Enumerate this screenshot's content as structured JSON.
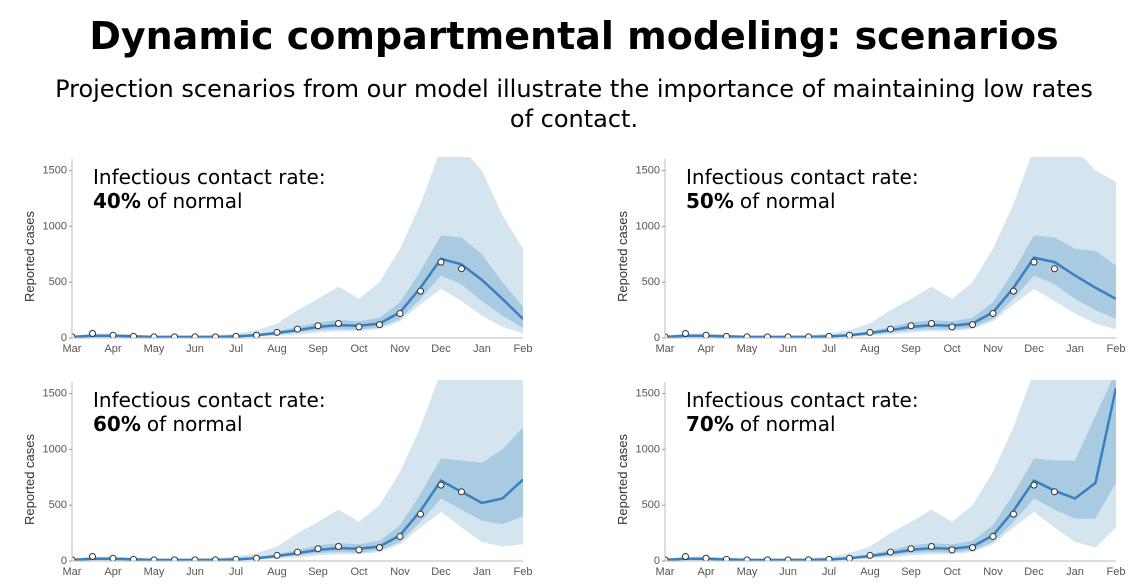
{
  "title": "Dynamic compartmental modeling: scenarios",
  "subtitle": "Projection scenarios from our model illustrate the importance of maintaining low rates of contact.",
  "chart_data": [
    {
      "type": "line",
      "rate_label": "Infectious contact rate:",
      "rate": "40%",
      "rate_suffix": "of normal",
      "y_label": "Reported cases",
      "categories": [
        "Mar",
        null,
        "Apr",
        null,
        "May",
        null,
        "Jun",
        null,
        "Jul",
        null,
        "Aug",
        null,
        "Sep",
        null,
        "Oct",
        null,
        "Nov",
        null,
        "Dec",
        null,
        "Jan",
        null,
        "Feb"
      ],
      "ylim": [
        0,
        1550
      ],
      "yticks": [
        0,
        500,
        1000,
        1500
      ],
      "series": [
        {
          "kind": "band",
          "color": "#d4e5ef",
          "lower": [
            0,
            5,
            5,
            5,
            0,
            0,
            0,
            0,
            5,
            10,
            20,
            30,
            50,
            60,
            60,
            80,
            150,
            300,
            440,
            330,
            200,
            100,
            40
          ],
          "upper": [
            20,
            40,
            40,
            30,
            20,
            20,
            20,
            25,
            40,
            70,
            130,
            250,
            350,
            460,
            350,
            500,
            800,
            1200,
            1700,
            1700,
            1500,
            1100,
            800
          ]
        },
        {
          "kind": "band",
          "color": "#a9cbe1",
          "lower": [
            5,
            15,
            15,
            10,
            5,
            5,
            5,
            5,
            10,
            18,
            32,
            50,
            70,
            80,
            75,
            95,
            170,
            350,
            560,
            480,
            330,
            200,
            90
          ],
          "upper": [
            15,
            25,
            25,
            20,
            15,
            15,
            15,
            15,
            20,
            35,
            60,
            100,
            140,
            160,
            150,
            180,
            320,
            600,
            920,
            900,
            750,
            500,
            280
          ]
        },
        {
          "kind": "line",
          "color": "#3a7fc0",
          "values": [
            10,
            20,
            20,
            15,
            10,
            10,
            10,
            10,
            15,
            25,
            45,
            70,
            100,
            115,
            110,
            130,
            230,
            450,
            710,
            660,
            520,
            350,
            170
          ]
        },
        {
          "kind": "points",
          "color": "#333333",
          "values": [
            10,
            40,
            25,
            15,
            10,
            10,
            10,
            10,
            15,
            25,
            50,
            80,
            110,
            130,
            100,
            120,
            220,
            420,
            680,
            620,
            null,
            null,
            null
          ]
        }
      ]
    },
    {
      "type": "line",
      "rate_label": "Infectious contact rate:",
      "rate": "50%",
      "rate_suffix": "of normal",
      "y_label": "Reported cases",
      "categories": [
        "Mar",
        null,
        "Apr",
        null,
        "May",
        null,
        "Jun",
        null,
        "Jul",
        null,
        "Aug",
        null,
        "Sep",
        null,
        "Oct",
        null,
        "Nov",
        null,
        "Dec",
        null,
        "Jan",
        null,
        "Feb"
      ],
      "ylim": [
        0,
        1550
      ],
      "yticks": [
        0,
        500,
        1000,
        1500
      ],
      "series": [
        {
          "kind": "band",
          "color": "#d4e5ef",
          "lower": [
            0,
            5,
            5,
            5,
            0,
            0,
            0,
            0,
            5,
            10,
            20,
            30,
            50,
            60,
            60,
            80,
            150,
            300,
            440,
            330,
            220,
            130,
            80
          ],
          "upper": [
            20,
            40,
            40,
            30,
            20,
            20,
            20,
            25,
            40,
            70,
            130,
            250,
            350,
            460,
            350,
            500,
            800,
            1200,
            1700,
            1700,
            1700,
            1500,
            1400
          ]
        },
        {
          "kind": "band",
          "color": "#a9cbe1",
          "lower": [
            5,
            15,
            15,
            10,
            5,
            5,
            5,
            5,
            10,
            18,
            32,
            50,
            70,
            80,
            75,
            95,
            170,
            350,
            560,
            480,
            350,
            250,
            170
          ],
          "upper": [
            15,
            25,
            25,
            20,
            15,
            15,
            15,
            15,
            20,
            35,
            60,
            100,
            140,
            160,
            150,
            180,
            320,
            600,
            920,
            900,
            800,
            780,
            650
          ]
        },
        {
          "kind": "line",
          "color": "#3a7fc0",
          "values": [
            10,
            20,
            20,
            15,
            10,
            10,
            10,
            10,
            15,
            25,
            45,
            70,
            100,
            115,
            110,
            130,
            230,
            450,
            720,
            680,
            560,
            450,
            350
          ]
        },
        {
          "kind": "points",
          "color": "#333333",
          "values": [
            10,
            40,
            25,
            15,
            10,
            10,
            10,
            10,
            15,
            25,
            50,
            80,
            110,
            130,
            100,
            120,
            220,
            420,
            680,
            620,
            null,
            null,
            null
          ]
        }
      ]
    },
    {
      "type": "line",
      "rate_label": "Infectious contact rate:",
      "rate": "60%",
      "rate_suffix": "of normal",
      "y_label": "Reported cases",
      "categories": [
        "Mar",
        null,
        "Apr",
        null,
        "May",
        null,
        "Jun",
        null,
        "Jul",
        null,
        "Aug",
        null,
        "Sep",
        null,
        "Oct",
        null,
        "Nov",
        null,
        "Dec",
        null,
        "Jan",
        null,
        "Feb"
      ],
      "ylim": [
        0,
        1550
      ],
      "yticks": [
        0,
        500,
        1000,
        1500
      ],
      "series": [
        {
          "kind": "band",
          "color": "#d4e5ef",
          "lower": [
            0,
            5,
            5,
            5,
            0,
            0,
            0,
            0,
            5,
            10,
            20,
            30,
            50,
            60,
            60,
            80,
            150,
            300,
            440,
            300,
            170,
            130,
            150
          ],
          "upper": [
            20,
            40,
            40,
            30,
            20,
            20,
            20,
            25,
            40,
            70,
            130,
            250,
            350,
            460,
            350,
            500,
            800,
            1200,
            1700,
            1700,
            1700,
            1700,
            1700
          ]
        },
        {
          "kind": "band",
          "color": "#a9cbe1",
          "lower": [
            5,
            15,
            15,
            10,
            5,
            5,
            5,
            5,
            10,
            18,
            32,
            50,
            70,
            80,
            75,
            95,
            170,
            350,
            560,
            460,
            360,
            330,
            400
          ],
          "upper": [
            15,
            25,
            25,
            20,
            15,
            15,
            15,
            15,
            20,
            35,
            60,
            100,
            140,
            160,
            150,
            180,
            320,
            600,
            920,
            900,
            880,
            1000,
            1200
          ]
        },
        {
          "kind": "line",
          "color": "#3a7fc0",
          "values": [
            10,
            20,
            20,
            15,
            10,
            10,
            10,
            10,
            15,
            25,
            45,
            70,
            100,
            115,
            110,
            130,
            230,
            450,
            720,
            620,
            520,
            560,
            730
          ]
        },
        {
          "kind": "points",
          "color": "#333333",
          "values": [
            10,
            40,
            25,
            15,
            10,
            10,
            10,
            10,
            15,
            25,
            50,
            80,
            110,
            130,
            100,
            120,
            220,
            420,
            680,
            620,
            null,
            null,
            null
          ]
        }
      ]
    },
    {
      "type": "line",
      "rate_label": "Infectious contact rate:",
      "rate": "70%",
      "rate_suffix": "of normal",
      "y_label": "Reported cases",
      "categories": [
        "Mar",
        null,
        "Apr",
        null,
        "May",
        null,
        "Jun",
        null,
        "Jul",
        null,
        "Aug",
        null,
        "Sep",
        null,
        "Oct",
        null,
        "Nov",
        null,
        "Dec",
        null,
        "Jan",
        null,
        "Feb"
      ],
      "ylim": [
        0,
        1550
      ],
      "yticks": [
        0,
        500,
        1000,
        1500
      ],
      "series": [
        {
          "kind": "band",
          "color": "#d4e5ef",
          "lower": [
            0,
            5,
            5,
            5,
            0,
            0,
            0,
            0,
            5,
            10,
            20,
            30,
            50,
            60,
            60,
            80,
            150,
            300,
            440,
            300,
            170,
            120,
            300
          ],
          "upper": [
            20,
            40,
            40,
            30,
            20,
            20,
            20,
            25,
            40,
            70,
            130,
            250,
            350,
            460,
            350,
            500,
            800,
            1200,
            1700,
            1700,
            1700,
            1700,
            1700
          ]
        },
        {
          "kind": "band",
          "color": "#a9cbe1",
          "lower": [
            5,
            15,
            15,
            10,
            5,
            5,
            5,
            5,
            10,
            18,
            32,
            50,
            70,
            80,
            75,
            95,
            170,
            350,
            560,
            460,
            380,
            380,
            700
          ],
          "upper": [
            15,
            25,
            25,
            20,
            15,
            15,
            15,
            15,
            20,
            35,
            60,
            100,
            140,
            160,
            150,
            180,
            320,
            600,
            920,
            900,
            900,
            1300,
            1700
          ]
        },
        {
          "kind": "line",
          "color": "#3a7fc0",
          "values": [
            10,
            20,
            20,
            15,
            10,
            10,
            10,
            10,
            15,
            25,
            45,
            70,
            100,
            115,
            110,
            130,
            230,
            450,
            720,
            630,
            560,
            700,
            1550
          ]
        },
        {
          "kind": "points",
          "color": "#333333",
          "values": [
            10,
            40,
            25,
            15,
            10,
            10,
            10,
            10,
            15,
            25,
            50,
            80,
            110,
            130,
            100,
            120,
            220,
            420,
            680,
            620,
            null,
            null,
            null
          ]
        }
      ]
    }
  ]
}
